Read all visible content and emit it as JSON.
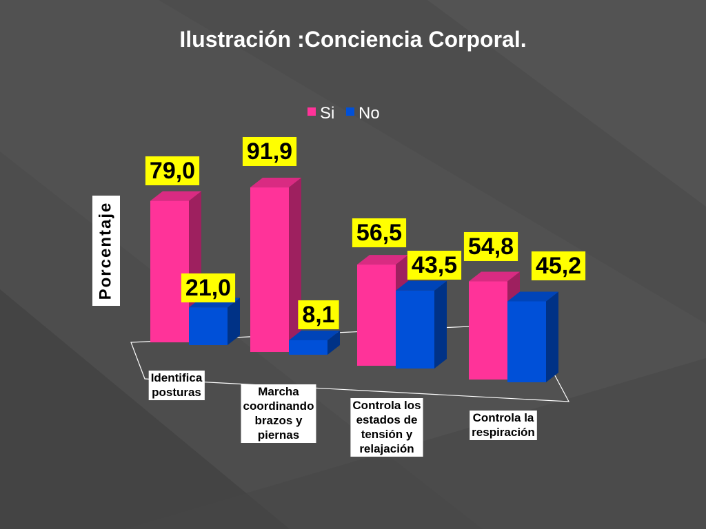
{
  "chart_data": {
    "type": "bar",
    "title": "Ilustración :Conciencia Corporal.",
    "ylabel": "Porcentaje",
    "xlabel": "",
    "categories": [
      [
        "Identifica",
        "posturas"
      ],
      [
        "Marcha",
        "coordinando",
        "brazos y",
        "piernas"
      ],
      [
        "Controla los",
        "estados de",
        "tensión y",
        "relajación"
      ],
      [
        "Controla la",
        "respiración"
      ]
    ],
    "series": [
      {
        "name": "Si",
        "values": [
          79.0,
          91.9,
          56.5,
          54.8
        ],
        "labels": [
          "79,0",
          "91,9",
          "56,5",
          "54,8"
        ],
        "color": "#ff3399"
      },
      {
        "name": "No",
        "values": [
          21.0,
          8.1,
          43.5,
          45.2
        ],
        "labels": [
          "21,0",
          "8,1",
          "43,5",
          "45,2"
        ],
        "color": "#0050d8"
      }
    ],
    "ylim": [
      0,
      100
    ],
    "grid": false,
    "legend": "top",
    "projection": "3d",
    "data_label_background": "#ffff00"
  }
}
